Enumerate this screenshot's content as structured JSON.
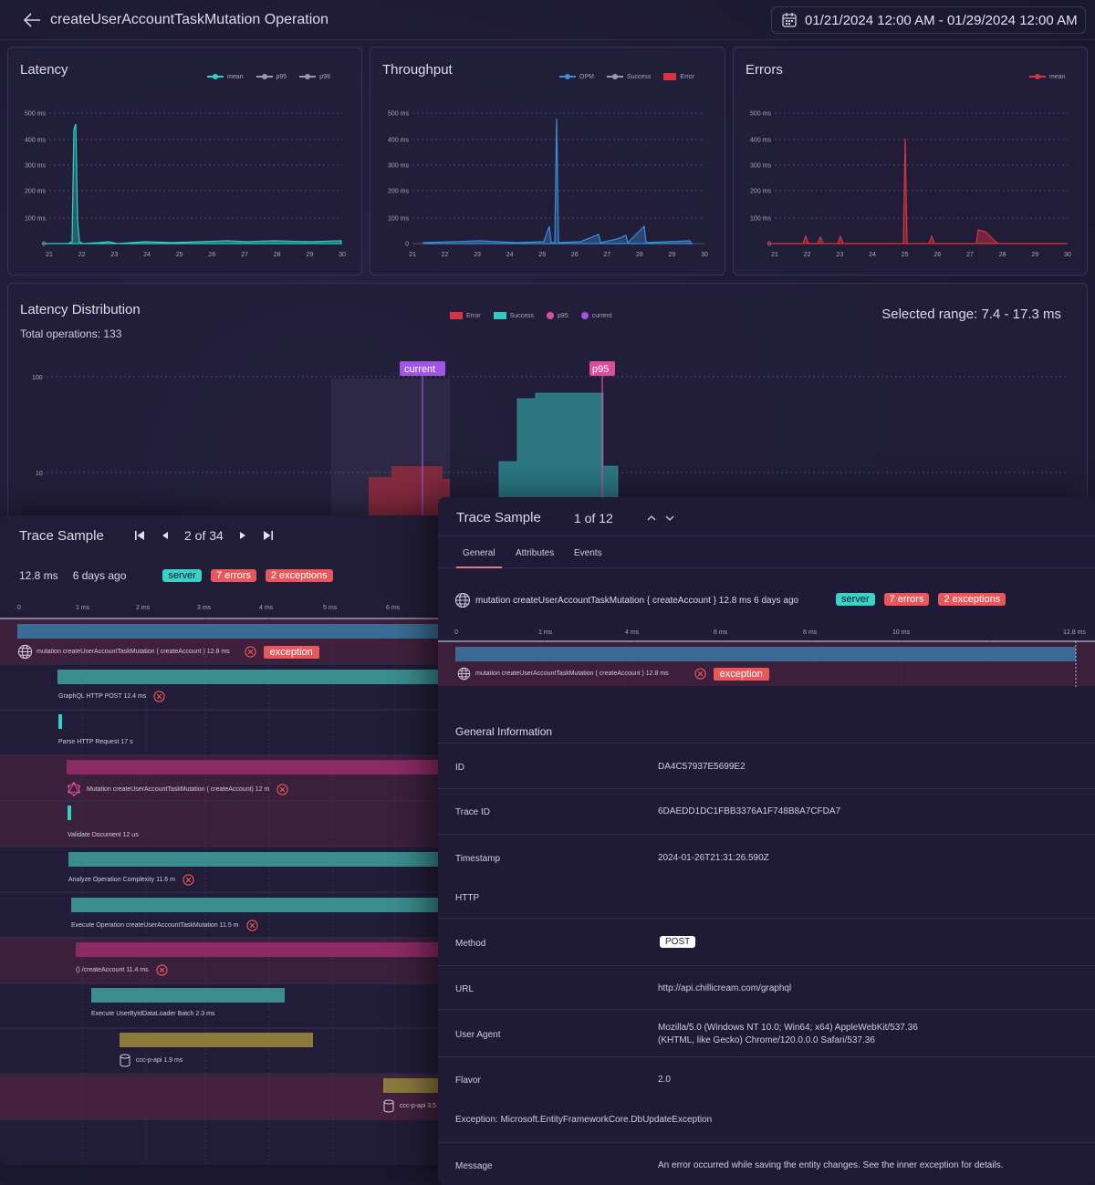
{
  "header": {
    "title": "createUserAccountTaskMutation Operation",
    "date_range": "01/21/2024 12:00 AM - 01/29/2024 12:00 AM"
  },
  "cards": {
    "latency": {
      "title": "Latency",
      "legend": [
        "mean",
        "p95",
        "p99"
      ]
    },
    "throughput": {
      "title": "Throughput",
      "legend": [
        "OPM",
        "Success",
        "Error"
      ]
    },
    "errors": {
      "title": "Errors",
      "legend": [
        "mean"
      ]
    },
    "y_ticks": [
      "500 ms",
      "400 ms",
      "300 ms",
      "200 ms",
      "100 ms",
      "0"
    ],
    "x_ticks": [
      "21",
      "22",
      "23",
      "24",
      "25",
      "26",
      "27",
      "28",
      "29",
      "30"
    ]
  },
  "distribution": {
    "title": "Latency Distribution",
    "subtitle": "Total operations: 133",
    "selected_range": "Selected range: 7.4 - 17.3 ms",
    "legend": [
      "Error",
      "Success",
      "p95",
      "current"
    ],
    "y_ticks": [
      "100",
      "10"
    ],
    "markers": {
      "current": "current",
      "p95": "p95"
    }
  },
  "trace_left": {
    "title": "Trace Sample",
    "pager": "2 of 34",
    "duration": "12.8 ms",
    "age": "6 days ago",
    "badges": {
      "server": "server",
      "errors": "7 errors",
      "exceptions": "2 exceptions"
    },
    "axis": [
      "0",
      "1 ms",
      "2 ms",
      "3 ms",
      "4 ms",
      "5 ms",
      "6 ms"
    ],
    "spans": [
      {
        "label": "mutation createUserAccountTaskMutation ( createAccount ) 12.8 ms",
        "badge": "exception"
      },
      {
        "label": "GraphQL HTTP POST 12.4 ms"
      },
      {
        "label": "Parse HTTP Request 17 s"
      },
      {
        "label": "Mutation createUserAccountTaskMutation ( createAccount) 12 m"
      },
      {
        "label": "Validate Document 12 us"
      },
      {
        "label": "Analyze Operation Complexity 11.6 m"
      },
      {
        "label": "Execute Operation createUserAccountTaskMutation 11.5 m"
      },
      {
        "label": "() /createAccount 11.4 ms"
      },
      {
        "label": "Execute UserByIdDataLoader Batch 2.3 ms"
      },
      {
        "label": "ccc-p-api 1.9 ms"
      },
      {
        "label": "ccc-p-api 3.5"
      }
    ]
  },
  "trace_right": {
    "title": "Trace Sample",
    "count": "1 of 12",
    "tabs": [
      "General",
      "Attributes",
      "Events"
    ],
    "operation": "mutation createUserAccountTaskMutation { createAccount } 12.8 ms 6 days ago",
    "badges": {
      "server": "server",
      "errors": "7 errors",
      "exceptions": "2 exceptions"
    },
    "axis": [
      "0",
      "1 ms",
      "4 ms",
      "6 ms",
      "8 ms",
      "10 ms",
      "12.8 ms"
    ],
    "span_label": "mutation createUserAccountTaskMutation ( createAccount ) 12.8 ms",
    "span_badge": "exception",
    "general_title": "General Information",
    "rows": {
      "id": {
        "key": "ID",
        "value": "DA4C57937E5699E2"
      },
      "trace_id": {
        "key": "Trace ID",
        "value": "6DAEDD1DC1FBB3376A1F748B8A7CFDA7"
      },
      "timestamp": {
        "key": "Timestamp",
        "value": "2024-01-26T21:31:26.590Z"
      },
      "http": {
        "key": "HTTP"
      },
      "method": {
        "key": "Method",
        "value": "POST"
      },
      "url": {
        "key": "URL",
        "value": "http://api.chillicream.com/graphql"
      },
      "user_agent": {
        "key": "User Agent",
        "value1": "Mozilla/5.0 (Windows NT 10.0; Win64; x64) AppleWebKit/537.36",
        "value2": "(KHTML, like Gecko) Chrome/120.0.0.0 Safari/537.36"
      },
      "flavor": {
        "key": "Flavor",
        "value": "2.0"
      },
      "exception": {
        "key": "Exception: Microsoft.EntityFrameworkCore.DbUpdateException"
      },
      "message": {
        "key": "Message",
        "value": "An error occurred while saving the entity changes. See the inner exception for details."
      }
    }
  },
  "colors": {
    "mean_teal": "#2fd3c6",
    "gray_series": "#9a98ab",
    "opm_blue": "#3a8fd8",
    "error_red": "#d8343f",
    "success_teal": "#36c9c0",
    "p95_pink": "#d84f9b",
    "current_purple": "#a056e0"
  }
}
